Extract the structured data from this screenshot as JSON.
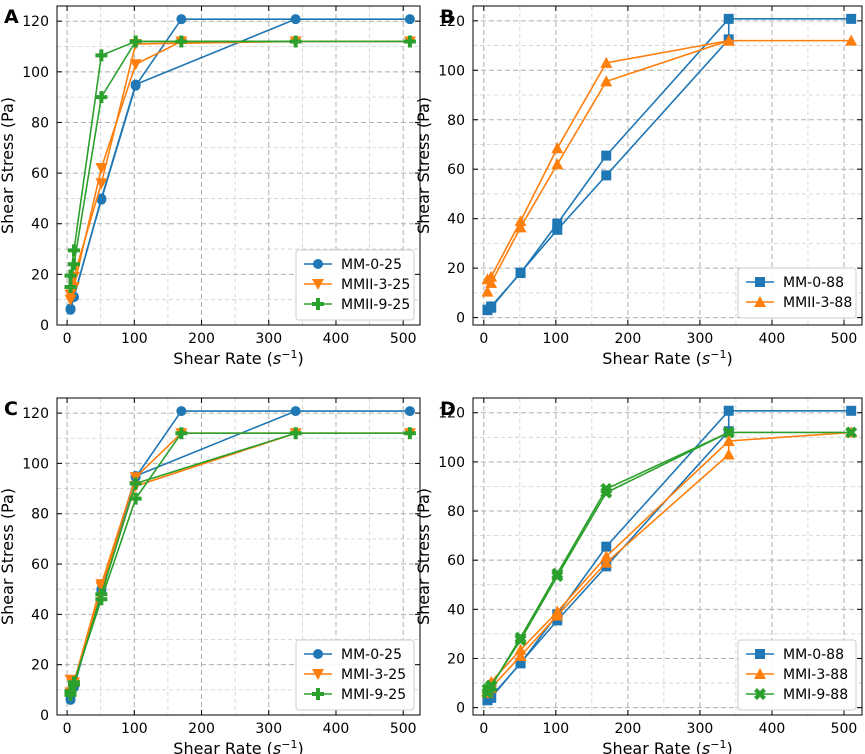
{
  "chart_data": [
    {
      "type": "line",
      "panel": "A",
      "xlabel": "Shear Rate",
      "xlabel_unit": "s",
      "xlabel_unit_exp": "−1",
      "ylabel": "Shear Stress (Pa)",
      "xlim": [
        -15,
        525
      ],
      "ylim": [
        0,
        126
      ],
      "xticks": [
        "0",
        "100",
        "200",
        "300",
        "400",
        "500"
      ],
      "yticks": [
        "0",
        "20",
        "40",
        "60",
        "80",
        "100",
        "120"
      ],
      "xtick_values": [
        0,
        100,
        200,
        300,
        400,
        500
      ],
      "ytick_values": [
        0,
        20,
        40,
        60,
        80,
        100,
        120
      ],
      "grid": true,
      "legend_position": "bottom-right",
      "series": [
        {
          "name": "MM-0-25",
          "color": "#1f77b4",
          "marker": "circle",
          "x": [
            5.1,
            10.2,
            51,
            102,
            170,
            340,
            510
          ],
          "y": [
            6.5,
            11.2,
            49.5,
            94.5,
            120.8,
            120.8,
            120.8
          ]
        },
        {
          "name": "MMII-3-25",
          "color": "#ff7f0e",
          "marker": "triangle-down",
          "x": [
            5.1,
            10.2,
            51,
            102,
            170,
            340,
            510
          ],
          "y": [
            10,
            15,
            62,
            103,
            112,
            112,
            112
          ]
        },
        {
          "name": "MMII-9-25",
          "color": "#2ca02c",
          "marker": "plus",
          "x": [
            5.1,
            10.2,
            51,
            102,
            170,
            340,
            510
          ],
          "y": [
            19.5,
            29.5,
            106.5,
            112,
            112,
            112,
            112
          ]
        }
      ],
      "extra_points": [
        {
          "series": "MM-0-25",
          "x": [
            5.1,
            10.2,
            51,
            102
          ],
          "y": [
            6,
            11,
            50,
            95
          ]
        },
        {
          "series": "MMII-3-25",
          "x": [
            5.1,
            10.2,
            51,
            102
          ],
          "y": [
            12,
            19,
            56,
            111
          ]
        },
        {
          "series": "MMII-9-25",
          "x": [
            5.1,
            10.2,
            51,
            102
          ],
          "y": [
            15,
            24,
            90,
            112
          ]
        }
      ]
    },
    {
      "type": "line",
      "panel": "B",
      "xlabel": "Shear Rate",
      "xlabel_unit": "s",
      "xlabel_unit_exp": "−1",
      "ylabel": "Shear Stress (Pa)",
      "xlim": [
        -15,
        525
      ],
      "ylim": [
        -3,
        126
      ],
      "xticks": [
        "0",
        "100",
        "200",
        "300",
        "400",
        "500"
      ],
      "yticks": [
        "0",
        "20",
        "40",
        "60",
        "80",
        "100",
        "120"
      ],
      "xtick_values": [
        0,
        100,
        200,
        300,
        400,
        500
      ],
      "ytick_values": [
        0,
        20,
        40,
        60,
        80,
        100,
        120
      ],
      "grid": true,
      "legend_position": "bottom-right",
      "series": [
        {
          "name": "MM-0-88",
          "color": "#1f77b4",
          "marker": "square",
          "x": [
            5.1,
            10.2,
            51,
            102,
            170,
            340,
            510
          ],
          "y": [
            3,
            4.5,
            18,
            38,
            65.5,
            120.8,
            120.8
          ]
        },
        {
          "name": "MMII-3-88",
          "color": "#ff7f0e",
          "marker": "triangle-up",
          "x": [
            5.1,
            10.2,
            51,
            102,
            170,
            340,
            510
          ],
          "y": [
            10.5,
            16.5,
            39,
            68.5,
            103,
            112,
            112
          ]
        }
      ],
      "extra_points": [
        {
          "series": "MM-0-88",
          "x": [
            5.1,
            10.2,
            51,
            102,
            170,
            340
          ],
          "y": [
            3.2,
            4,
            18.2,
            35.5,
            57.5,
            112.5
          ]
        },
        {
          "series": "MMII-3-88",
          "x": [
            5.1,
            10.2,
            51,
            102,
            170,
            340
          ],
          "y": [
            15.5,
            14,
            36.5,
            62,
            95.5,
            112
          ]
        }
      ]
    },
    {
      "type": "line",
      "panel": "C",
      "xlabel": "Shear Rate",
      "xlabel_unit": "s",
      "xlabel_unit_exp": "−1",
      "ylabel": "Shear Stress (Pa)",
      "xlim": [
        -15,
        525
      ],
      "ylim": [
        0,
        126
      ],
      "xticks": [
        "0",
        "100",
        "200",
        "300",
        "400",
        "500"
      ],
      "yticks": [
        "0",
        "20",
        "40",
        "60",
        "80",
        "100",
        "120"
      ],
      "xtick_values": [
        0,
        100,
        200,
        300,
        400,
        500
      ],
      "ytick_values": [
        0,
        20,
        40,
        60,
        80,
        100,
        120
      ],
      "grid": true,
      "legend_position": "bottom-right",
      "series": [
        {
          "name": "MM-0-25",
          "color": "#1f77b4",
          "marker": "circle",
          "x": [
            5.1,
            10.2,
            51,
            102,
            170,
            340,
            510
          ],
          "y": [
            6.5,
            11.2,
            49.5,
            94.5,
            120.8,
            120.8,
            120.8
          ]
        },
        {
          "name": "MMI-3-25",
          "color": "#ff7f0e",
          "marker": "triangle-down",
          "x": [
            5.1,
            10.2,
            51,
            102,
            170,
            340,
            510
          ],
          "y": [
            9,
            13,
            52,
            94.5,
            112,
            112,
            112
          ]
        },
        {
          "name": "MMI-9-25",
          "color": "#2ca02c",
          "marker": "plus",
          "x": [
            5.1,
            10.2,
            51,
            102,
            170,
            340,
            510
          ],
          "y": [
            9.5,
            13,
            46,
            86,
            112,
            112,
            112
          ]
        }
      ],
      "extra_points": [
        {
          "series": "MM-0-25",
          "x": [
            5.1,
            10.2,
            51,
            102
          ],
          "y": [
            6,
            11,
            50,
            95
          ]
        },
        {
          "series": "MMI-3-25",
          "x": [
            5.1,
            10.2,
            51,
            102
          ],
          "y": [
            14,
            12,
            51,
            91
          ]
        },
        {
          "series": "MMI-9-25",
          "x": [
            5.1,
            10.2,
            51,
            102
          ],
          "y": [
            8,
            12,
            48,
            92
          ]
        }
      ]
    },
    {
      "type": "line",
      "panel": "D",
      "xlabel": "Shear Rate",
      "xlabel_unit": "s",
      "xlabel_unit_exp": "−1",
      "ylabel": "Shear Stress (Pa)",
      "xlim": [
        -15,
        525
      ],
      "ylim": [
        -3,
        126
      ],
      "xticks": [
        "0",
        "100",
        "200",
        "300",
        "400",
        "500"
      ],
      "yticks": [
        "0",
        "20",
        "40",
        "60",
        "80",
        "100",
        "120"
      ],
      "xtick_values": [
        0,
        100,
        200,
        300,
        400,
        500
      ],
      "ytick_values": [
        0,
        20,
        40,
        60,
        80,
        100,
        120
      ],
      "grid": true,
      "legend_position": "bottom-right",
      "series": [
        {
          "name": "MM-0-88",
          "color": "#1f77b4",
          "marker": "square",
          "x": [
            5.1,
            10.2,
            51,
            102,
            170,
            340,
            510
          ],
          "y": [
            3,
            4.5,
            18,
            38,
            65.5,
            120.8,
            120.8
          ]
        },
        {
          "name": "MMI-3-88",
          "color": "#ff7f0e",
          "marker": "triangle-up",
          "x": [
            5.1,
            10.2,
            51,
            102,
            170,
            340,
            510
          ],
          "y": [
            7,
            10.5,
            23.5,
            39,
            61.5,
            108.5,
            112
          ]
        },
        {
          "name": "MMI-9-88",
          "color": "#2ca02c",
          "marker": "x-thick",
          "x": [
            5.1,
            10.2,
            51,
            102,
            170,
            340,
            510
          ],
          "y": [
            6,
            8.5,
            28.5,
            54.5,
            89,
            112,
            112
          ]
        }
      ],
      "extra_points": [
        {
          "series": "MM-0-88",
          "x": [
            5.1,
            10.2,
            51,
            102,
            170,
            340
          ],
          "y": [
            3.2,
            4,
            18.2,
            35.5,
            57.5,
            112.5
          ]
        },
        {
          "series": "MMI-3-88",
          "x": [
            5.1,
            10.2,
            51,
            102,
            170,
            340
          ],
          "y": [
            6,
            8,
            21,
            37.5,
            59,
            103
          ]
        },
        {
          "series": "MMI-9-88",
          "x": [
            5.1,
            10.2,
            51,
            102,
            170,
            340
          ],
          "y": [
            7.5,
            9,
            27.5,
            53.5,
            87.5,
            112
          ]
        }
      ]
    }
  ]
}
